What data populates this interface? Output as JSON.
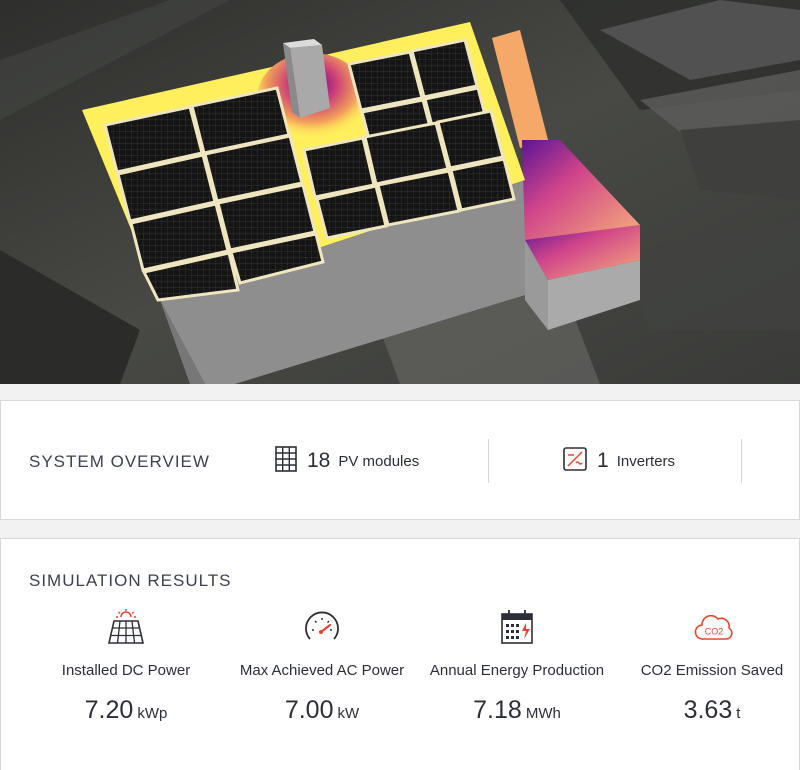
{
  "system_overview": {
    "title": "SYSTEM OVERVIEW",
    "modules": {
      "count": "18",
      "label": "PV modules",
      "icon": "solar-grid-icon"
    },
    "inverters": {
      "count": "1",
      "label": "Inverters",
      "icon": "inverter-icon"
    }
  },
  "simulation_results": {
    "title": "SIMULATION RESULTS",
    "metrics": [
      {
        "label": "Installed DC Power",
        "value": "7.20",
        "unit": "kWp",
        "icon": "solar-panel-sun-icon"
      },
      {
        "label": "Max Achieved AC Power",
        "value": "7.00",
        "unit": "kW",
        "icon": "gauge-icon"
      },
      {
        "label": "Annual Energy Production",
        "value": "7.18",
        "unit": "MWh",
        "icon": "calendar-energy-icon"
      },
      {
        "label": "CO2 Emission Saved",
        "value": "3.63",
        "unit": "t",
        "icon": "co2-cloud-icon"
      }
    ]
  },
  "colors": {
    "accent": "#e8452f",
    "roof_highlight": "#ffef5c",
    "shade": "#7a1fa2"
  }
}
